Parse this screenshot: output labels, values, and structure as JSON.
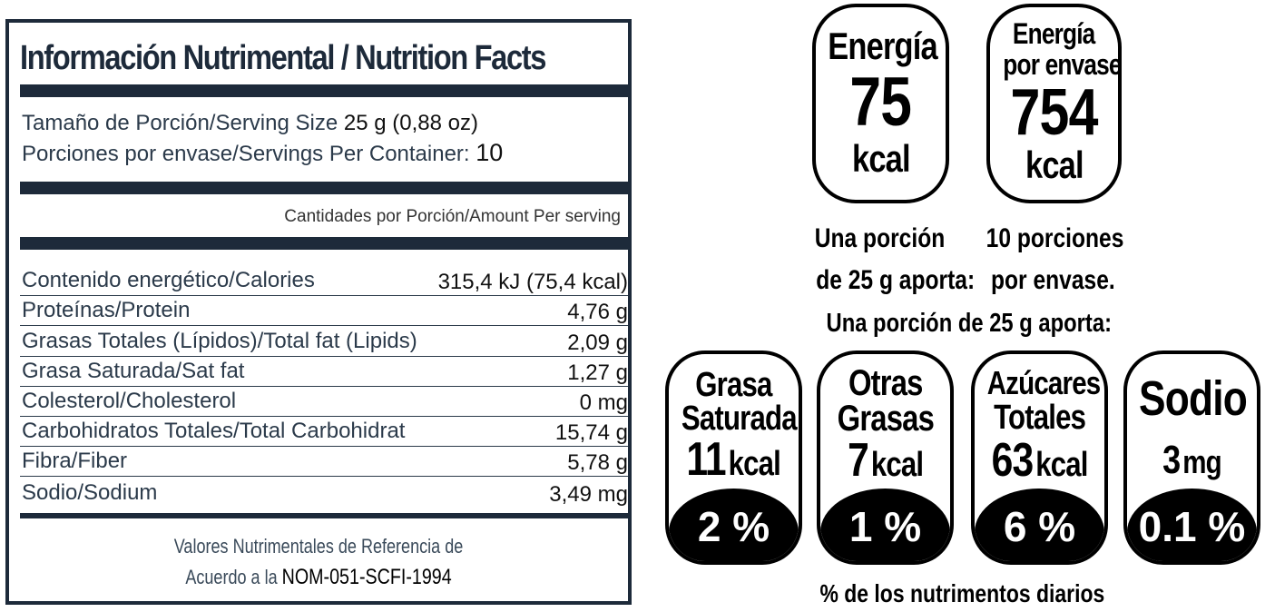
{
  "facts": {
    "title": "Información Nutrimental / Nutrition Facts",
    "serving_size_label": "Tamaño de Porción/Serving Size",
    "serving_size_value": "25 g (0,88 oz)",
    "servings_label": "Porciones por envase/Servings Per Container:",
    "servings_value": "10",
    "amount_header": "Cantidades por Porción/Amount Per serving",
    "rows": [
      {
        "label": "Contenido energético/Calories",
        "amount": "315,4 kJ (75,4 kcal)"
      },
      {
        "label": "Proteínas/Protein",
        "amount": "4,76 g"
      },
      {
        "label": "Grasas Totales (Lípidos)/Total fat (Lipids)",
        "amount": "2,09 g"
      },
      {
        "label": "Grasa Saturada/Sat fat",
        "amount": "1,27 g"
      },
      {
        "label": "Colesterol/Cholesterol",
        "amount": "0 mg"
      },
      {
        "label": "Carbohidratos Totales/Total Carbohidrat",
        "amount": "15,74 g"
      },
      {
        "label": "Fibra/Fiber",
        "amount": "5,78 g"
      },
      {
        "label": "Sodio/Sodium",
        "amount": "3,49 mg"
      }
    ],
    "ref_line1": "Valores Nutrimentales de Referencia de",
    "ref_line2_prefix": "Acuerdo a la",
    "ref_line2_code": "NOM-051-SCFI-1994"
  },
  "energy": {
    "portion": {
      "title": "Energía",
      "value": "75",
      "unit": "kcal",
      "caption_line1": "Una porción",
      "caption_line2": "de 25 g aporta:"
    },
    "container": {
      "title_line1": "Energía",
      "title_line2": "por envase",
      "value": "754",
      "unit": "kcal",
      "caption_line1": "10 porciones",
      "caption_line2": "por envase."
    }
  },
  "portion_heading": "Una porción de 25 g aporta:",
  "nutrients": [
    {
      "name_line1": "Grasa",
      "name_line2": "Saturada",
      "value": "11",
      "unit": "kcal",
      "percent": "2 %"
    },
    {
      "name_line1": "Otras",
      "name_line2": "Grasas",
      "value": "7",
      "unit": "kcal",
      "percent": "1 %"
    },
    {
      "name_line1": "Azúcares",
      "name_line2": "Totales",
      "value": "63",
      "unit": "kcal",
      "percent": "6 %"
    },
    {
      "name_line1": "Sodio",
      "name_line2": "",
      "value": "3",
      "unit": "mg",
      "percent": "0.1 %"
    }
  ],
  "footer": "% de los nutrimentos diarios"
}
